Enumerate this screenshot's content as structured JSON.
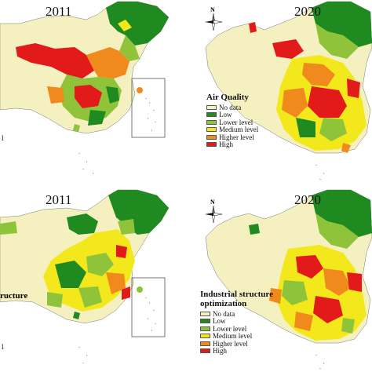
{
  "panels": [
    {
      "year": "2011"
    },
    {
      "year": "2020"
    },
    {
      "year": "2011"
    },
    {
      "year": "2020"
    }
  ],
  "legend_air": {
    "title": "Air Quality",
    "items": [
      {
        "label": "No data",
        "color": "#f5f0c0"
      },
      {
        "label": "Low",
        "color": "#1f8a1f"
      },
      {
        "label": "Lower level",
        "color": "#8fc43a"
      },
      {
        "label": "Medium level",
        "color": "#f2e81c"
      },
      {
        "label": "Higher level",
        "color": "#f08a1c"
      },
      {
        "label": "High",
        "color": "#e21a1a"
      }
    ]
  },
  "legend_ind": {
    "title_line1": "Industrial structure",
    "title_line2": "optimization",
    "items": [
      {
        "label": "No data",
        "color": "#f5f0c0"
      },
      {
        "label": "Low",
        "color": "#1f8a1f"
      },
      {
        "label": "Lower level",
        "color": "#8fc43a"
      },
      {
        "label": "Medium level",
        "color": "#f2e81c"
      },
      {
        "label": "Higher level",
        "color": "#f08a1c"
      },
      {
        "label": "High",
        "color": "#e21a1a"
      }
    ]
  },
  "cut_left_top": "l",
  "cut_left_bottom_title": "ructure",
  "cut_left_bottom_small": "l",
  "north_label": "N"
}
